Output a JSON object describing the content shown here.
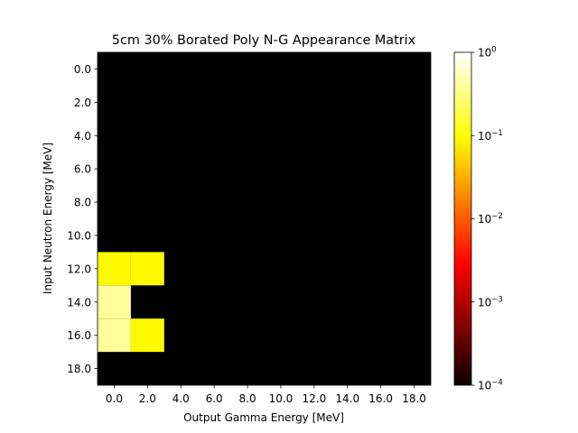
{
  "chart_data": {
    "type": "heatmap",
    "title": "5cm 30% Borated Poly N-G Appearance Matrix",
    "xlabel": "Output Gamma Energy [MeV]",
    "ylabel": "Input Neutron Energy [MeV]",
    "x_tick_labels": [
      "0.0",
      "2.0",
      "4.0",
      "6.0",
      "8.0",
      "10.0",
      "12.0",
      "14.0",
      "16.0",
      "18.0"
    ],
    "y_tick_labels": [
      "0.0",
      "2.0",
      "4.0",
      "6.0",
      "8.0",
      "10.0",
      "12.0",
      "14.0",
      "16.0",
      "18.0"
    ],
    "x_range": [
      -1,
      19
    ],
    "y_range": [
      -1,
      19
    ],
    "bin_width_mev": 2,
    "colormap": "hot",
    "color_scale": "log",
    "color_range": [
      0.0001,
      1
    ],
    "colorbar_ticks": [
      {
        "value": 1,
        "base": "10",
        "exp": "0"
      },
      {
        "value": 0.1,
        "base": "10",
        "exp": "−1"
      },
      {
        "value": 0.01,
        "base": "10",
        "exp": "−2"
      },
      {
        "value": 0.001,
        "base": "10",
        "exp": "−3"
      },
      {
        "value": 0.0001,
        "base": "10",
        "exp": "−4"
      }
    ],
    "background_value": 0.0001,
    "cells": [
      {
        "x_mev": 0,
        "y_mev": 12,
        "value": 0.09
      },
      {
        "x_mev": 2,
        "y_mev": 12,
        "value": 0.09
      },
      {
        "x_mev": 0,
        "y_mev": 14,
        "value": 0.4
      },
      {
        "x_mev": 0,
        "y_mev": 16,
        "value": 0.4
      },
      {
        "x_mev": 2,
        "y_mev": 16,
        "value": 0.09
      }
    ]
  }
}
